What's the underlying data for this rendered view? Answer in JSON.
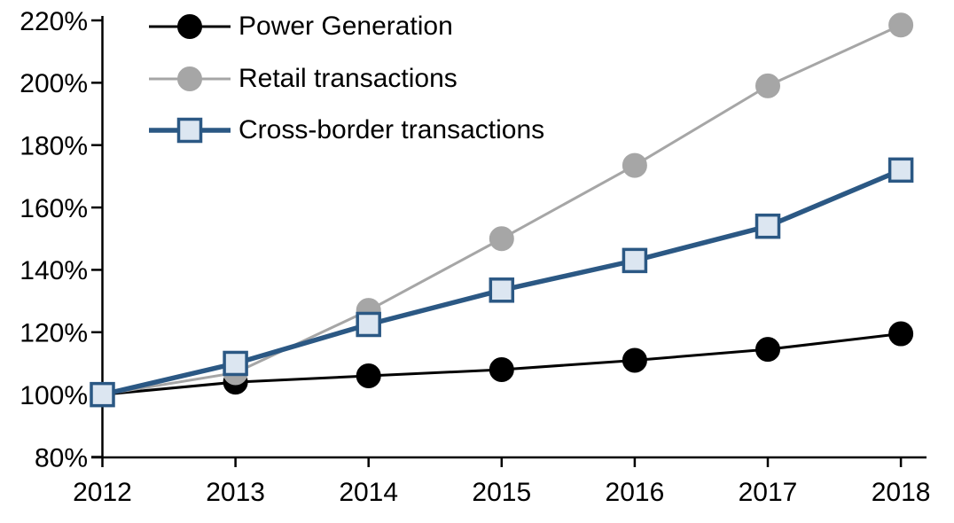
{
  "chart_data": {
    "type": "line",
    "title": "",
    "xlabel": "",
    "ylabel": "",
    "x": [
      2012,
      2013,
      2014,
      2015,
      2016,
      2017,
      2018
    ],
    "x_tick_labels": [
      "2012",
      "2013",
      "2014",
      "2015",
      "2016",
      "2017",
      "2018"
    ],
    "y_ticks": [
      80,
      100,
      120,
      140,
      160,
      180,
      200,
      220
    ],
    "y_tick_labels": [
      "80%",
      "100%",
      "120%",
      "140%",
      "160%",
      "180%",
      "200%",
      "220%"
    ],
    "ylim": [
      80,
      220
    ],
    "grid": false,
    "legend_position": "top-left-inside",
    "series": [
      {
        "name": "Power Generation",
        "marker": "circle",
        "line_color": "#000000",
        "marker_fill": "#000000",
        "marker_stroke": "#000000",
        "line_width": 3,
        "values": [
          100,
          104,
          106,
          108,
          111,
          114.5,
          119.5
        ]
      },
      {
        "name": "Retail transactions",
        "marker": "circle",
        "line_color": "#a6a6a6",
        "marker_fill": "#a6a6a6",
        "marker_stroke": "#a6a6a6",
        "line_width": 3,
        "values": [
          100,
          107,
          127,
          150,
          173.5,
          199,
          218.5
        ]
      },
      {
        "name": "Cross-border transactions",
        "marker": "square",
        "line_color": "#2b5884",
        "marker_fill": "#dce6f1",
        "marker_stroke": "#2b5884",
        "line_width": 5.5,
        "values": [
          100,
          110,
          122.5,
          133.5,
          143,
          154,
          172
        ]
      }
    ],
    "axis_color": "#000000",
    "label_color": "#000000",
    "background_color": "#ffffff",
    "font_size_px": 30
  }
}
